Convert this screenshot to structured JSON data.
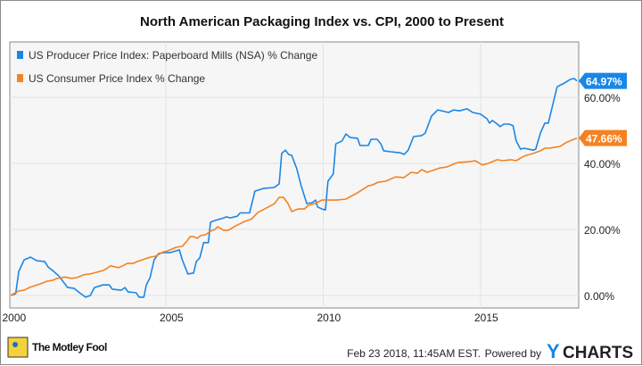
{
  "chart_data": {
    "type": "line",
    "title": "North American Packaging Index vs. CPI, 2000 to Present",
    "xlabel": "",
    "ylabel": "",
    "x_ticks": [
      "2000",
      "2005",
      "2010",
      "2015"
    ],
    "y_ticks": [
      "0.00%",
      "20.00%",
      "40.00%",
      "60.00%"
    ],
    "xlim": [
      2000,
      2018.15
    ],
    "ylim": [
      -5,
      75
    ],
    "grid": true,
    "legend_position": "top-left",
    "series": [
      {
        "name": "US Producer Price Index: Paperboard Mills (NSA) % Change",
        "color": "#1a86e8",
        "end_label": "64.97%",
        "points": [
          [
            2000.07,
            0
          ],
          [
            2000.23,
            0.5
          ],
          [
            2000.33,
            7.3
          ],
          [
            2000.5,
            10.8
          ],
          [
            2000.7,
            11.6
          ],
          [
            2000.9,
            10.5
          ],
          [
            2001.15,
            10.3
          ],
          [
            2001.26,
            8.6
          ],
          [
            2001.4,
            7.6
          ],
          [
            2001.6,
            5.9
          ],
          [
            2001.88,
            2.4
          ],
          [
            2002.08,
            2.2
          ],
          [
            2002.26,
            0.8
          ],
          [
            2002.45,
            -0.5
          ],
          [
            2002.6,
            0
          ],
          [
            2002.73,
            2.4
          ],
          [
            2003.0,
            3.2
          ],
          [
            2003.2,
            3.2
          ],
          [
            2003.3,
            1.9
          ],
          [
            2003.58,
            1.6
          ],
          [
            2003.7,
            2.4
          ],
          [
            2003.8,
            1.1
          ],
          [
            2004.06,
            0.8
          ],
          [
            2004.15,
            -0.5
          ],
          [
            2004.3,
            -0.5
          ],
          [
            2004.38,
            3.2
          ],
          [
            2004.5,
            5.4
          ],
          [
            2004.63,
            10.8
          ],
          [
            2004.77,
            12.7
          ],
          [
            2004.95,
            13
          ],
          [
            2005.15,
            13
          ],
          [
            2005.43,
            13.8
          ],
          [
            2005.52,
            10.8
          ],
          [
            2005.7,
            6.5
          ],
          [
            2005.88,
            6.8
          ],
          [
            2005.97,
            10.3
          ],
          [
            2006.08,
            11.4
          ],
          [
            2006.2,
            16
          ],
          [
            2006.35,
            16
          ],
          [
            2006.42,
            22.2
          ],
          [
            2006.56,
            22.7
          ],
          [
            2006.84,
            23.5
          ],
          [
            2006.93,
            23.8
          ],
          [
            2007.04,
            23.5
          ],
          [
            2007.27,
            24
          ],
          [
            2007.36,
            25
          ],
          [
            2007.66,
            25
          ],
          [
            2007.83,
            31.6
          ],
          [
            2008.1,
            32.4
          ],
          [
            2008.45,
            32.7
          ],
          [
            2008.6,
            33.8
          ],
          [
            2008.68,
            43
          ],
          [
            2008.8,
            44
          ],
          [
            2008.9,
            42.7
          ],
          [
            2009.0,
            42.4
          ],
          [
            2009.16,
            38.4
          ],
          [
            2009.3,
            33.2
          ],
          [
            2009.48,
            27.8
          ],
          [
            2009.65,
            28.1
          ],
          [
            2009.76,
            28.9
          ],
          [
            2009.82,
            26.8
          ],
          [
            2009.96,
            26.2
          ],
          [
            2010.07,
            25.9
          ],
          [
            2010.15,
            34.6
          ],
          [
            2010.32,
            36.8
          ],
          [
            2010.4,
            45.9
          ],
          [
            2010.6,
            46.8
          ],
          [
            2010.72,
            48.9
          ],
          [
            2010.86,
            47.8
          ],
          [
            2011.09,
            47.6
          ],
          [
            2011.17,
            45.4
          ],
          [
            2011.43,
            45.4
          ],
          [
            2011.52,
            47.3
          ],
          [
            2011.71,
            47.3
          ],
          [
            2011.83,
            45.9
          ],
          [
            2011.92,
            43.8
          ],
          [
            2012.14,
            43.5
          ],
          [
            2012.45,
            43.2
          ],
          [
            2012.57,
            42.7
          ],
          [
            2012.7,
            44
          ],
          [
            2012.87,
            48.1
          ],
          [
            2013.13,
            48.4
          ],
          [
            2013.24,
            49.2
          ],
          [
            2013.44,
            54.3
          ],
          [
            2013.64,
            56.2
          ],
          [
            2013.98,
            55.4
          ],
          [
            2014.15,
            56.2
          ],
          [
            2014.32,
            55.9
          ],
          [
            2014.57,
            56.5
          ],
          [
            2014.75,
            55.4
          ],
          [
            2015.0,
            54.9
          ],
          [
            2015.2,
            53.5
          ],
          [
            2015.28,
            52.2
          ],
          [
            2015.37,
            53
          ],
          [
            2015.53,
            51.9
          ],
          [
            2015.62,
            51.1
          ],
          [
            2015.74,
            51.9
          ],
          [
            2015.9,
            51.9
          ],
          [
            2016.03,
            51.4
          ],
          [
            2016.13,
            46.8
          ],
          [
            2016.27,
            44.3
          ],
          [
            2016.38,
            44.6
          ],
          [
            2016.67,
            44
          ],
          [
            2016.75,
            44.3
          ],
          [
            2016.9,
            49.2
          ],
          [
            2017.04,
            52.2
          ],
          [
            2017.15,
            52.2
          ],
          [
            2017.27,
            56.8
          ],
          [
            2017.43,
            63.2
          ],
          [
            2017.66,
            64.3
          ],
          [
            2017.84,
            65.4
          ],
          [
            2017.97,
            65.7
          ],
          [
            2018.06,
            64.97
          ]
        ]
      },
      {
        "name": "US Consumer Price Index % Change",
        "color": "#f58220",
        "end_label": "47.66%",
        "points": [
          [
            2000.07,
            0
          ],
          [
            2000.33,
            1.4
          ],
          [
            2000.5,
            1.6
          ],
          [
            2000.66,
            2.4
          ],
          [
            2000.9,
            3.2
          ],
          [
            2001.03,
            3.6
          ],
          [
            2001.22,
            4.3
          ],
          [
            2001.4,
            4.6
          ],
          [
            2001.55,
            5.2
          ],
          [
            2001.8,
            5.6
          ],
          [
            2002.0,
            5.2
          ],
          [
            2002.17,
            5.4
          ],
          [
            2002.4,
            6.3
          ],
          [
            2002.6,
            6.5
          ],
          [
            2003.02,
            7.6
          ],
          [
            2003.16,
            8.4
          ],
          [
            2003.25,
            9
          ],
          [
            2003.5,
            8.4
          ],
          [
            2003.64,
            9
          ],
          [
            2003.77,
            9.7
          ],
          [
            2003.96,
            9.7
          ],
          [
            2004.1,
            10.3
          ],
          [
            2004.35,
            11.1
          ],
          [
            2004.5,
            11.6
          ],
          [
            2004.67,
            11.9
          ],
          [
            2004.92,
            13.2
          ],
          [
            2005.05,
            13.5
          ],
          [
            2005.33,
            14.6
          ],
          [
            2005.52,
            14.9
          ],
          [
            2005.65,
            16.2
          ],
          [
            2005.77,
            17.8
          ],
          [
            2005.88,
            17.8
          ],
          [
            2006.0,
            17.3
          ],
          [
            2006.1,
            18.1
          ],
          [
            2006.27,
            18.4
          ],
          [
            2006.42,
            19.5
          ],
          [
            2006.56,
            20
          ],
          [
            2006.65,
            20.8
          ],
          [
            2006.84,
            19.7
          ],
          [
            2006.98,
            19.7
          ],
          [
            2007.2,
            21
          ],
          [
            2007.5,
            22.4
          ],
          [
            2007.73,
            23.2
          ],
          [
            2007.92,
            25.1
          ],
          [
            2008.3,
            27
          ],
          [
            2008.45,
            27.8
          ],
          [
            2008.6,
            29.7
          ],
          [
            2008.74,
            29.7
          ],
          [
            2008.88,
            27.8
          ],
          [
            2009.0,
            25.4
          ],
          [
            2009.2,
            26.2
          ],
          [
            2009.4,
            26.2
          ],
          [
            2009.53,
            27.3
          ],
          [
            2009.73,
            27.8
          ],
          [
            2009.96,
            28.9
          ],
          [
            2010.43,
            28.9
          ],
          [
            2010.72,
            29.2
          ],
          [
            2011.09,
            31.1
          ],
          [
            2011.43,
            33.2
          ],
          [
            2011.57,
            33.5
          ],
          [
            2011.74,
            34.3
          ],
          [
            2011.99,
            34.6
          ],
          [
            2012.3,
            35.9
          ],
          [
            2012.57,
            35.7
          ],
          [
            2012.79,
            37.3
          ],
          [
            2012.99,
            37
          ],
          [
            2013.13,
            38.1
          ],
          [
            2013.3,
            37.3
          ],
          [
            2013.7,
            38.6
          ],
          [
            2013.92,
            38.9
          ],
          [
            2014.12,
            39.7
          ],
          [
            2014.3,
            40.3
          ],
          [
            2014.63,
            40.5
          ],
          [
            2014.83,
            40.8
          ],
          [
            2014.92,
            40.3
          ],
          [
            2015.06,
            39.5
          ],
          [
            2015.25,
            40
          ],
          [
            2015.53,
            41.1
          ],
          [
            2015.7,
            40.8
          ],
          [
            2015.96,
            41.1
          ],
          [
            2016.13,
            40.8
          ],
          [
            2016.38,
            42.2
          ],
          [
            2016.67,
            43
          ],
          [
            2016.9,
            43.8
          ],
          [
            2017.04,
            44.6
          ],
          [
            2017.18,
            44.6
          ],
          [
            2017.52,
            45.1
          ],
          [
            2017.7,
            46.2
          ],
          [
            2017.88,
            47
          ],
          [
            2018.06,
            47.66
          ]
        ]
      }
    ]
  },
  "footer": {
    "brand": "The Motley Fool",
    "timestamp": "Feb 23 2018, 11:45AM EST.",
    "powered_by": "Powered by",
    "provider": "YCHARTS"
  }
}
